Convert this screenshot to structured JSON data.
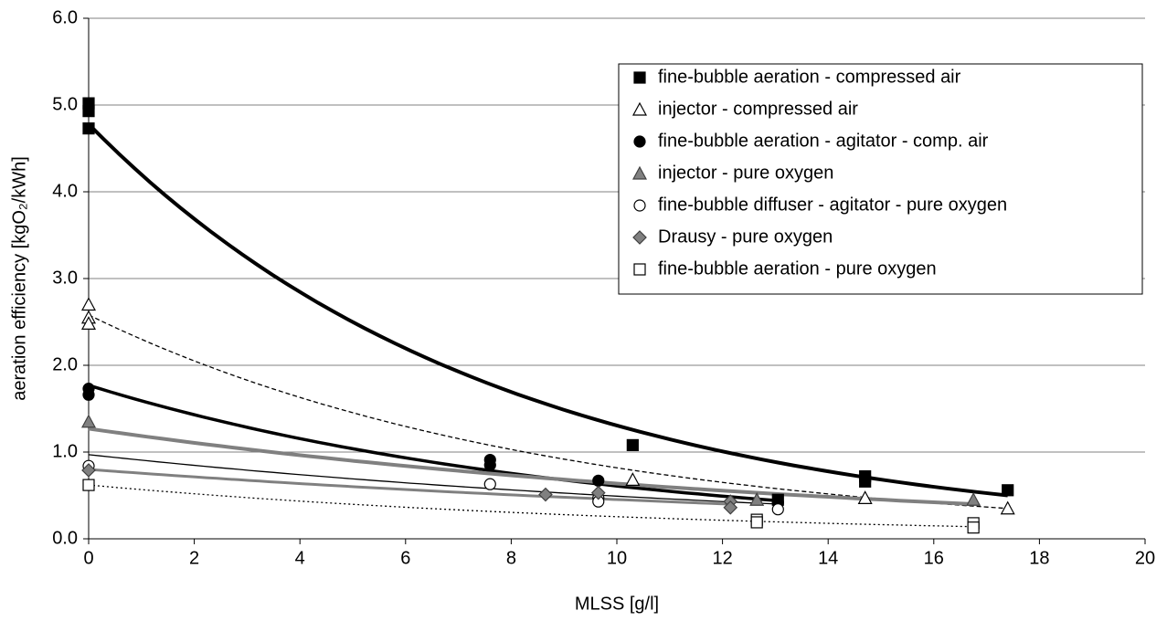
{
  "chart_data": {
    "type": "scatter",
    "x_label": "MLSS [g/l]",
    "y_label": "aeration efficiency [kgO₂/kWh]",
    "xlim": [
      0,
      20
    ],
    "ylim": [
      0,
      6
    ],
    "xticks": [
      0,
      2,
      4,
      6,
      8,
      10,
      12,
      14,
      16,
      18,
      20
    ],
    "yticks": [
      {
        "value": 0,
        "label": "0.0"
      },
      {
        "value": 1,
        "label": "1.0"
      },
      {
        "value": 2,
        "label": "2.0"
      },
      {
        "value": 3,
        "label": "3.0"
      },
      {
        "value": 4,
        "label": "4.0"
      },
      {
        "value": 5,
        "label": "5.0"
      },
      {
        "value": 6,
        "label": "6.0"
      }
    ],
    "grid": true,
    "legend": "upper right",
    "series": [
      {
        "name": "fine-bubble aeration - compressed air",
        "marker": "square",
        "color": "#000000",
        "line_color": "#000000",
        "x": [
          0,
          0,
          0,
          10.3,
          13.05,
          14.7,
          14.7,
          17.4
        ],
        "y": [
          5.02,
          4.93,
          4.73,
          1.08,
          0.45,
          0.72,
          0.66,
          0.56
        ],
        "trend": {
          "x": [
            0,
            17.4
          ],
          "y": [
            4.78,
            0.5
          ]
        }
      },
      {
        "name": "injector - compressed air",
        "marker": "triangle",
        "color": "#ffffff",
        "line_color": "#000000",
        "x": [
          0,
          0,
          0,
          10.3,
          14.7,
          17.4
        ],
        "y": [
          2.7,
          2.55,
          2.48,
          0.68,
          0.47,
          0.35
        ],
        "trend": {
          "x": [
            0,
            17.4
          ],
          "y": [
            2.58,
            0.35
          ]
        }
      },
      {
        "name": "fine-bubble aeration - agitator - comp. air",
        "marker": "circle",
        "color": "#000000",
        "line_color": "#000000",
        "x": [
          0,
          0,
          7.6,
          7.6,
          9.65,
          13.05
        ],
        "y": [
          1.73,
          1.66,
          0.91,
          0.85,
          0.67,
          0.42
        ],
        "trend": {
          "x": [
            0,
            13.05
          ],
          "y": [
            1.77,
            0.44
          ]
        }
      },
      {
        "name": "injector - pure oxygen",
        "marker": "triangle",
        "color": "#808080",
        "line_color": "#808080",
        "x": [
          0,
          12.65,
          16.75
        ],
        "y": [
          1.35,
          0.45,
          0.45
        ],
        "trend": {
          "x": [
            0,
            16.75
          ],
          "y": [
            1.27,
            0.4
          ]
        }
      },
      {
        "name": "fine-bubble diffuser - agitator - pure oxygen",
        "marker": "circle",
        "color": "#ffffff",
        "line_color": "#000000",
        "x": [
          0,
          7.6,
          9.65,
          9.65,
          13.05
        ],
        "y": [
          0.84,
          0.63,
          0.47,
          0.43,
          0.34
        ],
        "trend": {
          "x": [
            0,
            13.05
          ],
          "y": [
            0.97,
            0.4
          ]
        }
      },
      {
        "name": "Drausy - pure oxygen",
        "marker": "diamond",
        "color": "#808080",
        "line_color": "#808080",
        "x": [
          0,
          8.65,
          9.65,
          12.15,
          12.15
        ],
        "y": [
          0.79,
          0.51,
          0.53,
          0.43,
          0.36
        ],
        "trend": {
          "x": [
            0,
            12.15
          ],
          "y": [
            0.8,
            0.4
          ]
        }
      },
      {
        "name": "fine-bubble aeration - pure oxygen",
        "marker": "square",
        "color": "#ffffff",
        "line_color": "#000000",
        "x": [
          0,
          12.65,
          12.65,
          16.75,
          16.75
        ],
        "y": [
          0.62,
          0.22,
          0.19,
          0.18,
          0.13
        ],
        "trend": {
          "x": [
            0,
            16.75
          ],
          "y": [
            0.62,
            0.14
          ]
        }
      }
    ]
  }
}
